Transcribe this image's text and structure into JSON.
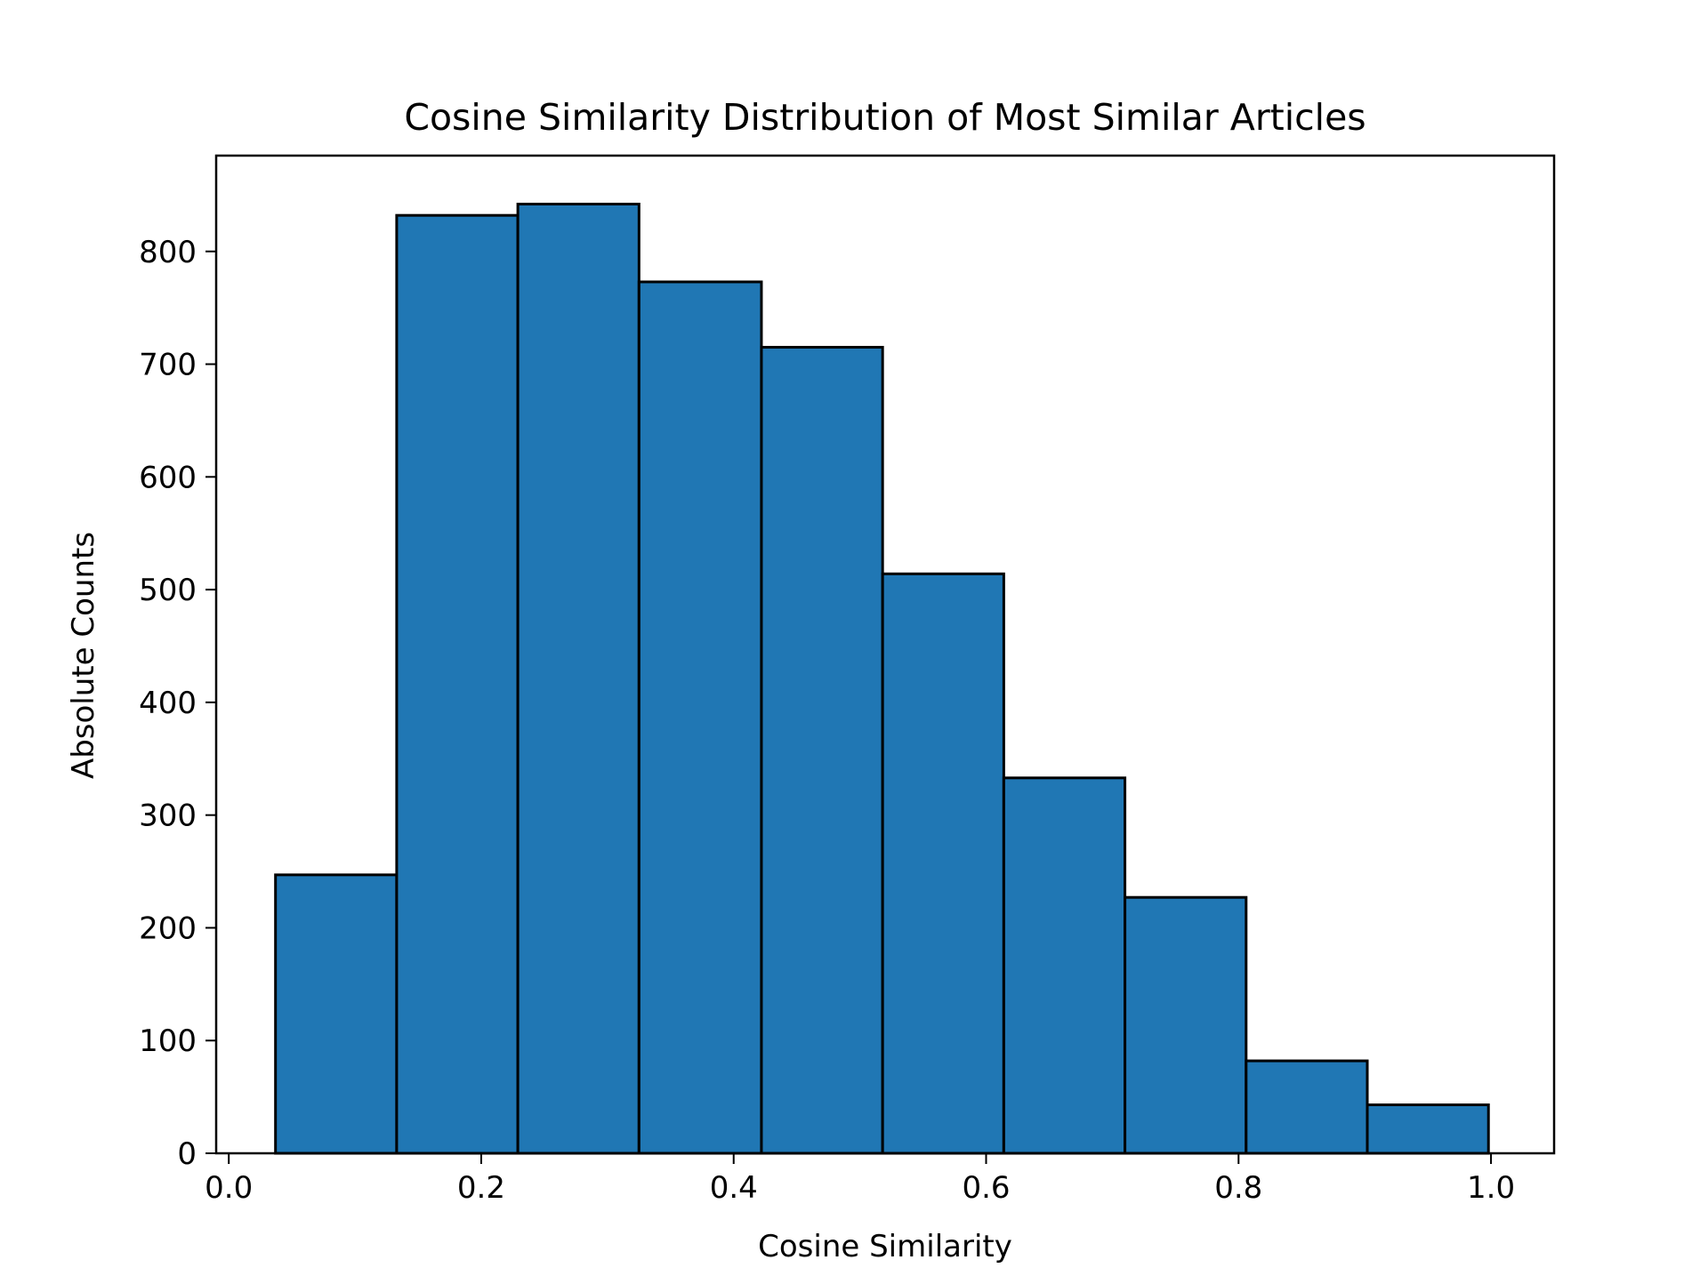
{
  "chart_data": {
    "type": "bar",
    "title": "Cosine Similarity Distribution of Most Similar Articles",
    "xlabel": "Cosine Similarity",
    "ylabel": "Absolute Counts",
    "xlim": [
      -0.01,
      1.05
    ],
    "ylim": [
      0,
      885
    ],
    "grid": false,
    "legend": "none",
    "bar_color": "#2077b4",
    "edge_color": "#000000",
    "bin_edges": [
      0.037,
      0.133,
      0.229,
      0.325,
      0.422,
      0.518,
      0.614,
      0.71,
      0.806,
      0.902,
      0.998
    ],
    "values": [
      247,
      832,
      842,
      773,
      715,
      514,
      333,
      227,
      82,
      43
    ],
    "xticks": [
      {
        "value": 0.0,
        "label": "0.0"
      },
      {
        "value": 0.2,
        "label": "0.2"
      },
      {
        "value": 0.4,
        "label": "0.4"
      },
      {
        "value": 0.6,
        "label": "0.6"
      },
      {
        "value": 0.8,
        "label": "0.8"
      },
      {
        "value": 1.0,
        "label": "1.0"
      }
    ],
    "yticks": [
      {
        "value": 0,
        "label": "0"
      },
      {
        "value": 100,
        "label": "100"
      },
      {
        "value": 200,
        "label": "200"
      },
      {
        "value": 300,
        "label": "300"
      },
      {
        "value": 400,
        "label": "400"
      },
      {
        "value": 500,
        "label": "500"
      },
      {
        "value": 600,
        "label": "600"
      },
      {
        "value": 700,
        "label": "700"
      },
      {
        "value": 800,
        "label": "800"
      }
    ]
  }
}
